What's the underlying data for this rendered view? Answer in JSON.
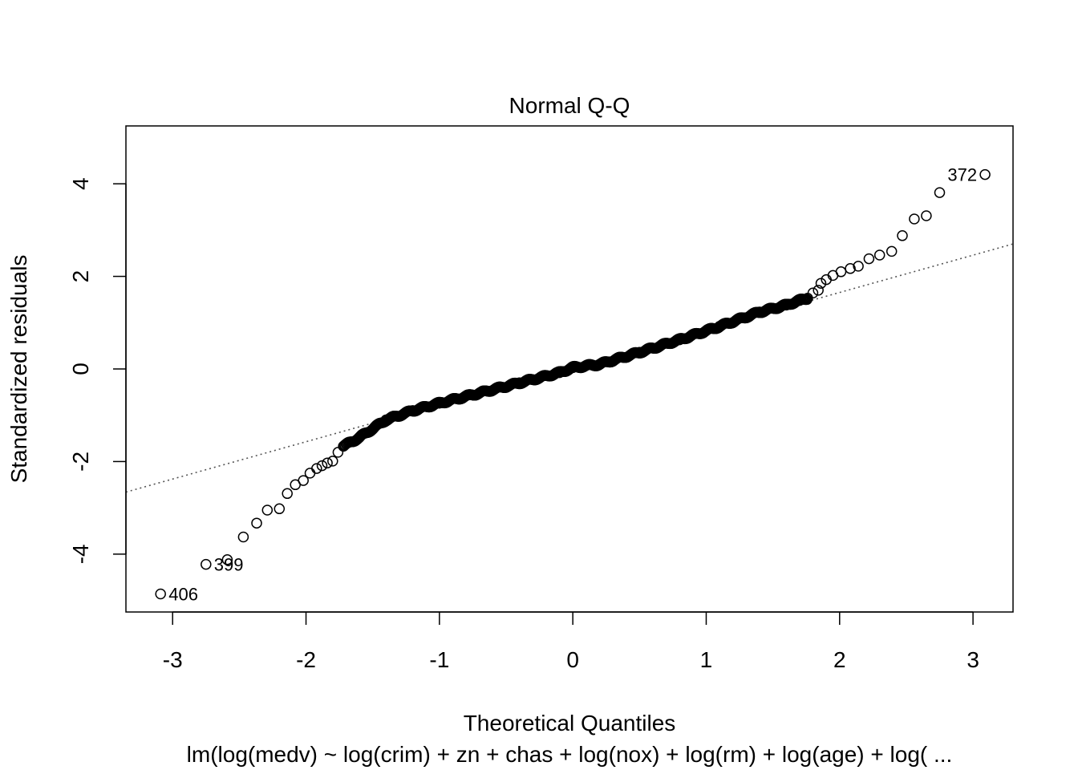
{
  "chart_data": {
    "type": "scatter",
    "title": "Normal Q-Q",
    "xlabel": "Theoretical Quantiles",
    "ylabel": "Standardized residuals",
    "subtitle": "lm(log(medv) ~ log(crim) + zn + chas + log(nox) + log(rm) + log(age) + log( ...",
    "xlim": [
      -3.35,
      3.3
    ],
    "ylim": [
      -5.25,
      5.25
    ],
    "x_ticks": [
      -3,
      -2,
      -1,
      0,
      1,
      2,
      3
    ],
    "y_ticks": [
      -4,
      -2,
      0,
      2,
      4
    ],
    "grid": false,
    "reference_line": {
      "style": "dotted",
      "points": [
        [
          -3.35,
          -2.66
        ],
        [
          3.3,
          2.7
        ]
      ]
    },
    "marker": "open-circle",
    "n_points": 506,
    "quantile_anchors": [
      [
        -3.09,
        -4.86
      ],
      [
        -2.75,
        -4.22
      ],
      [
        -2.59,
        -4.12
      ],
      [
        -2.47,
        -3.63
      ],
      [
        -2.37,
        -3.33
      ],
      [
        -2.29,
        -3.05
      ],
      [
        -2.2,
        -3.02
      ],
      [
        -2.14,
        -2.69
      ],
      [
        -2.08,
        -2.5
      ],
      [
        -2.02,
        -2.41
      ],
      [
        -1.97,
        -2.25
      ],
      [
        -1.92,
        -2.15
      ],
      [
        -1.88,
        -2.09
      ],
      [
        -1.84,
        -2.03
      ],
      [
        -1.8,
        -1.99
      ],
      [
        -1.76,
        -1.8
      ],
      [
        -1.72,
        -1.67
      ],
      [
        -1.6,
        -1.48
      ],
      [
        -1.4,
        -1.1
      ],
      [
        -1.2,
        -0.9
      ],
      [
        -1.0,
        -0.74
      ],
      [
        -0.7,
        -0.52
      ],
      [
        -0.4,
        -0.3
      ],
      [
        -0.1,
        -0.08
      ],
      [
        0.0,
        0.03
      ],
      [
        0.2,
        0.1
      ],
      [
        0.5,
        0.36
      ],
      [
        0.8,
        0.63
      ],
      [
        1.1,
        0.92
      ],
      [
        1.4,
        1.23
      ],
      [
        1.6,
        1.38
      ],
      [
        1.7,
        1.48
      ],
      [
        1.76,
        1.53
      ],
      [
        1.8,
        1.64
      ],
      [
        1.84,
        1.7
      ],
      [
        1.86,
        1.85
      ],
      [
        1.9,
        1.93
      ],
      [
        1.95,
        2.02
      ],
      [
        2.01,
        2.1
      ],
      [
        2.08,
        2.17
      ],
      [
        2.14,
        2.22
      ],
      [
        2.22,
        2.38
      ],
      [
        2.3,
        2.46
      ],
      [
        2.39,
        2.54
      ],
      [
        2.47,
        2.88
      ],
      [
        2.56,
        3.24
      ],
      [
        2.65,
        3.31
      ],
      [
        2.75,
        3.81
      ],
      [
        3.09,
        4.2
      ]
    ],
    "labeled_points": [
      {
        "id": "406",
        "x": -3.09,
        "y": -4.86,
        "side": "right"
      },
      {
        "id": "399",
        "x": -2.75,
        "y": -4.22,
        "side": "right"
      },
      {
        "id": "372",
        "x": 3.09,
        "y": 4.2,
        "side": "left"
      }
    ]
  }
}
